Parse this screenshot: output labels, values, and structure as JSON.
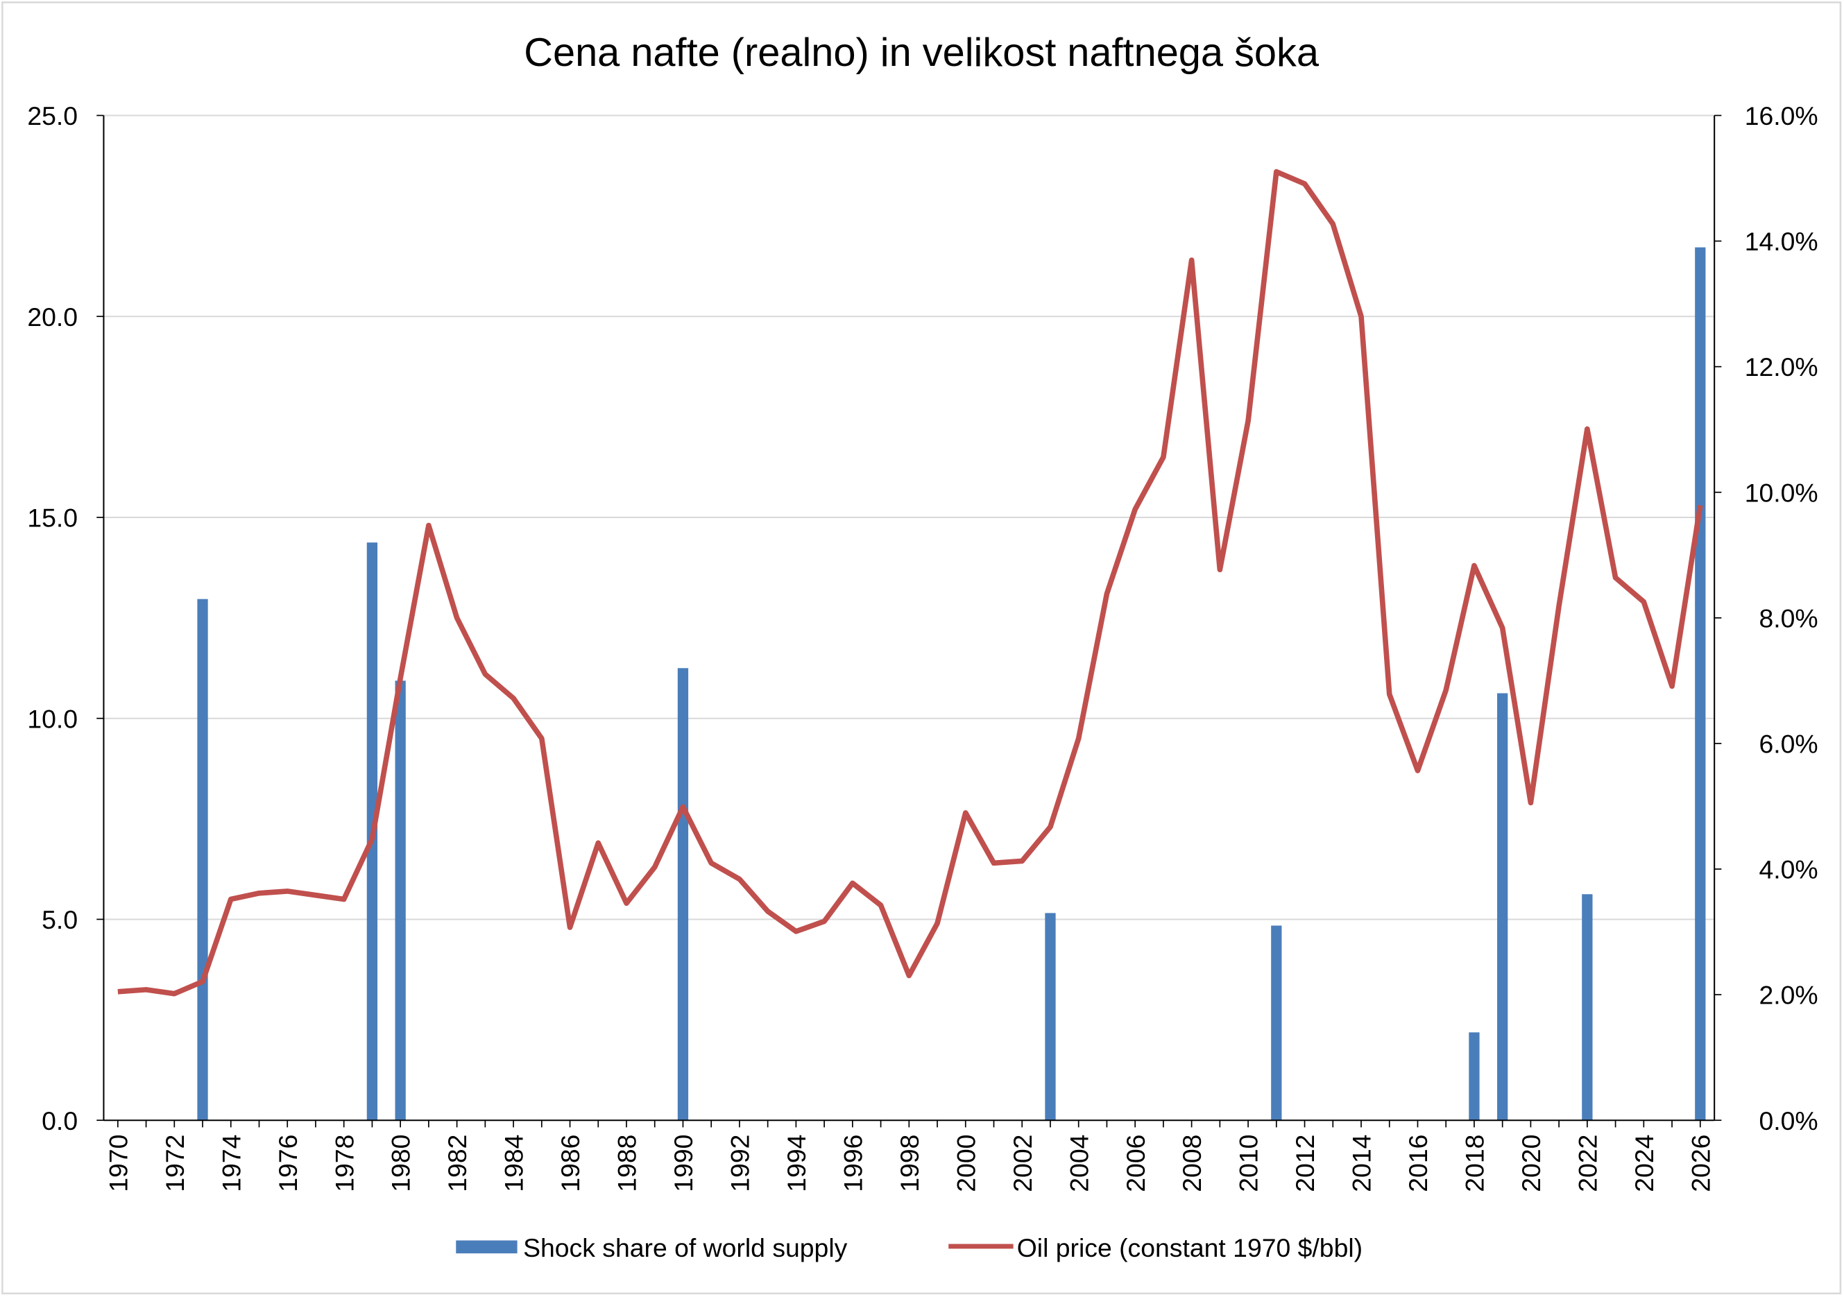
{
  "chart_data": {
    "type": "bar+line",
    "title": "Cena nafte (realno) in velikost naftnega šoka",
    "x": [
      1970,
      1971,
      1972,
      1973,
      1974,
      1975,
      1976,
      1977,
      1978,
      1979,
      1980,
      1981,
      1982,
      1983,
      1984,
      1985,
      1986,
      1987,
      1988,
      1989,
      1990,
      1991,
      1992,
      1993,
      1994,
      1995,
      1996,
      1997,
      1998,
      1999,
      2000,
      2001,
      2002,
      2003,
      2004,
      2005,
      2006,
      2007,
      2008,
      2009,
      2010,
      2011,
      2012,
      2013,
      2014,
      2015,
      2016,
      2017,
      2018,
      2019,
      2020,
      2021,
      2022,
      2023,
      2024,
      2025,
      2026
    ],
    "x_tick_labels": [
      "1970",
      "1972",
      "1974",
      "1976",
      "1978",
      "1980",
      "1982",
      "1984",
      "1986",
      "1988",
      "1990",
      "1992",
      "1994",
      "1996",
      "1998",
      "2000",
      "2002",
      "2004",
      "2006",
      "2008",
      "2010",
      "2012",
      "2014",
      "2016",
      "2018",
      "2020",
      "2022",
      "2024",
      "2026"
    ],
    "left_axis": {
      "ylim": [
        0,
        25
      ],
      "ticks": [
        "0.0",
        "5.0",
        "10.0",
        "15.0",
        "20.0",
        "25.0"
      ]
    },
    "right_axis": {
      "ylim": [
        0,
        16
      ],
      "ticks": [
        "0.0%",
        "2.0%",
        "4.0%",
        "6.0%",
        "8.0%",
        "10.0%",
        "12.0%",
        "14.0%",
        "16.0%"
      ]
    },
    "grid": true,
    "legend_position": "bottom",
    "series": [
      {
        "name": "Shock share of world supply",
        "type": "bar",
        "axis": "right",
        "color": "#4a7ebb",
        "points": [
          [
            1973,
            8.3
          ],
          [
            1979,
            9.2
          ],
          [
            1980,
            7.0
          ],
          [
            1990,
            7.2
          ],
          [
            2003,
            3.3
          ],
          [
            2011,
            3.1
          ],
          [
            2018,
            1.4
          ],
          [
            2019,
            6.8
          ],
          [
            2022,
            3.6
          ],
          [
            2026,
            13.9
          ]
        ]
      },
      {
        "name": "Oil price (constant 1970 $/bbl)",
        "type": "line",
        "axis": "left",
        "color": "#c0504d",
        "values": [
          3.2,
          3.25,
          3.15,
          3.45,
          5.5,
          5.65,
          5.7,
          5.6,
          5.5,
          7.0,
          11.0,
          14.8,
          12.5,
          11.1,
          10.5,
          9.5,
          4.8,
          6.9,
          5.4,
          6.3,
          7.8,
          6.4,
          6.0,
          5.2,
          4.7,
          4.95,
          5.9,
          5.35,
          3.6,
          4.9,
          7.65,
          6.4,
          6.45,
          7.3,
          9.5,
          13.1,
          15.2,
          16.5,
          21.4,
          13.7,
          17.4,
          23.6,
          23.3,
          22.3,
          20.0,
          10.6,
          8.7,
          10.7,
          13.8,
          12.25,
          7.9,
          12.8,
          17.2,
          13.5,
          12.9,
          10.8,
          15.3
        ]
      }
    ]
  }
}
